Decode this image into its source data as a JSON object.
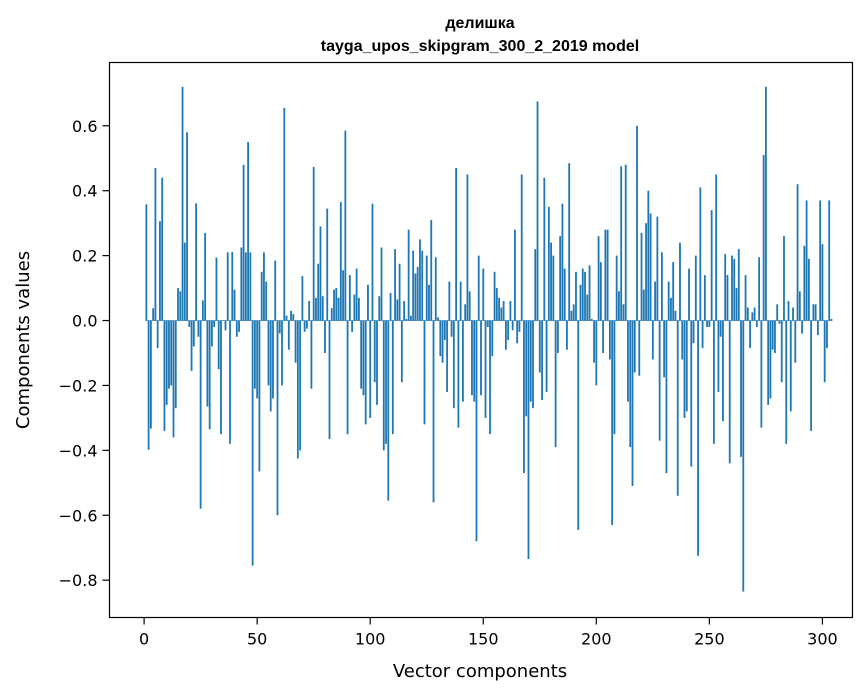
{
  "chart_data": {
    "type": "bar",
    "title": "делишка",
    "subtitle": "tayga_upos_skipgram_300_2_2019 model",
    "xlabel": "Vector components",
    "ylabel": "Components values",
    "xlim": [
      -15.3,
      313.3
    ],
    "ylim": [
      -0.915,
      0.795
    ],
    "xticks": [
      0,
      50,
      100,
      150,
      200,
      250,
      300
    ],
    "yticks": [
      -0.8,
      -0.6,
      -0.4,
      -0.2,
      0.0,
      0.2,
      0.4,
      0.6
    ],
    "ytick_labels": [
      "−0.8",
      "−0.6",
      "−0.4",
      "−0.2",
      "0.0",
      "0.2",
      "0.4",
      "0.6"
    ],
    "xtick_labels": [
      "0",
      "50",
      "100",
      "150",
      "200",
      "250",
      "300"
    ],
    "bar_color": "#1f77b4",
    "grid": false,
    "values": [
      0.358,
      -0.398,
      -0.333,
      0.038,
      0.47,
      -0.085,
      0.306,
      0.44,
      -0.34,
      -0.26,
      -0.21,
      -0.2,
      -0.36,
      -0.27,
      0.1,
      0.09,
      0.72,
      0.24,
      0.58,
      -0.02,
      -0.155,
      -0.08,
      0.361,
      -0.05,
      -0.58,
      0.062,
      0.27,
      -0.265,
      -0.335,
      -0.08,
      -0.02,
      0.194,
      -0.15,
      -0.35,
      0.0,
      -0.03,
      0.21,
      -0.38,
      0.211,
      0.095,
      -0.05,
      -0.035,
      0.225,
      0.48,
      0.21,
      0.55,
      0.21,
      -0.755,
      -0.21,
      -0.24,
      -0.465,
      0.15,
      0.21,
      0.12,
      -0.2,
      -0.28,
      -0.24,
      0.185,
      -0.6,
      -0.04,
      -0.2,
      0.655,
      0.015,
      -0.09,
      0.03,
      0.02,
      -0.13,
      -0.425,
      -0.4,
      0.137,
      -0.035,
      -0.025,
      0.06,
      -0.21,
      0.473,
      0.07,
      0.175,
      0.29,
      0.075,
      -0.1,
      0.345,
      -0.365,
      0.038,
      0.095,
      0.1,
      0.07,
      0.365,
      0.155,
      0.585,
      -0.35,
      0.14,
      -0.035,
      0.08,
      0.16,
      0.07,
      -0.21,
      -0.23,
      -0.32,
      0.11,
      -0.3,
      0.36,
      -0.19,
      -0.26,
      0.075,
      0.225,
      -0.4,
      -0.38,
      -0.555,
      0.085,
      -0.35,
      0.22,
      0.065,
      0.175,
      -0.19,
      0.06,
      0.005,
      0.28,
      0.015,
      0.215,
      0.145,
      0.165,
      0.25,
      0.215,
      -0.32,
      0.2,
      0.11,
      0.31,
      -0.56,
      0.195,
      0.01,
      -0.11,
      -0.13,
      -0.06,
      -0.22,
      0.12,
      -0.05,
      -0.27,
      0.47,
      -0.33,
      0.12,
      -0.25,
      0.05,
      0.45,
      0.09,
      -0.23,
      -0.25,
      -0.68,
      0.2,
      -0.23,
      0.16,
      -0.3,
      -0.02,
      -0.35,
      -0.11,
      0.15,
      0.1,
      0.07,
      0.04,
      0.06,
      -0.09,
      -0.06,
      0.06,
      -0.03,
      0.28,
      -0.07,
      -0.035,
      0.45,
      -0.47,
      -0.295,
      -0.735,
      -0.25,
      -0.27,
      0.22,
      0.675,
      -0.16,
      -0.245,
      0.44,
      -0.22,
      0.35,
      0.24,
      0.2,
      -0.39,
      -0.1,
      0.26,
      0.36,
      0.16,
      -0.09,
      0.485,
      0.03,
      0.05,
      0.15,
      -0.645,
      0.11,
      0.16,
      0.15,
      0.08,
      0.17,
      0.005,
      -0.13,
      -0.2,
      0.26,
      0.18,
      -0.1,
      0.28,
      0.28,
      -0.12,
      -0.63,
      -0.35,
      0.2,
      0.09,
      0.475,
      0.05,
      0.48,
      -0.25,
      -0.39,
      -0.51,
      -0.16,
      0.6,
      -0.17,
      0.27,
      0.095,
      0.3,
      0.4,
      0.33,
      -0.12,
      0.12,
      0.32,
      -0.37,
      0.21,
      -0.175,
      -0.47,
      0.12,
      0.07,
      0.18,
      0.03,
      -0.54,
      0.24,
      -0.12,
      -0.3,
      -0.28,
      0.16,
      -0.45,
      -0.07,
      0.2,
      -0.725,
      0.41,
      -0.085,
      0.14,
      -0.02,
      -0.02,
      0.34,
      -0.38,
      0.45,
      -0.22,
      -0.05,
      -0.31,
      0.205,
      0.14,
      -0.44,
      0.2,
      0.19,
      0.1,
      0.22,
      -0.42,
      -0.835,
      0.14,
      0.04,
      -0.085,
      0.025,
      0.04,
      -0.02,
      0.195,
      -0.33,
      0.51,
      0.72,
      -0.26,
      -0.24,
      -0.09,
      -0.1,
      0.05,
      -0.01,
      -0.19,
      0.26,
      -0.38,
      0.06,
      -0.28,
      0.04,
      -0.13,
      0.42,
      0.09,
      -0.04,
      0.23,
      0.37,
      0.19,
      -0.34,
      0.05,
      0.05,
      -0.045,
      0.37,
      0.235,
      -0.19,
      -0.085,
      0.37,
      0.005
    ]
  }
}
